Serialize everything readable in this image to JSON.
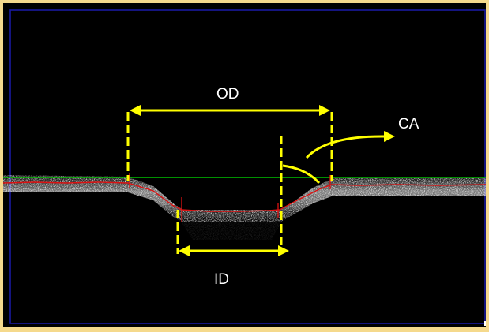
{
  "labels": {
    "outer_diameter": "OD",
    "contact_angle": "CA",
    "inner_diameter": "ID"
  },
  "colors": {
    "page_background": "#f5d98c",
    "image_background": "#000000",
    "border": "#1a1aa0",
    "annotation": "#ffff00",
    "surface_baseline": "#00c000",
    "profile_trace": "#dd1111",
    "label_text": "#ffffff"
  }
}
